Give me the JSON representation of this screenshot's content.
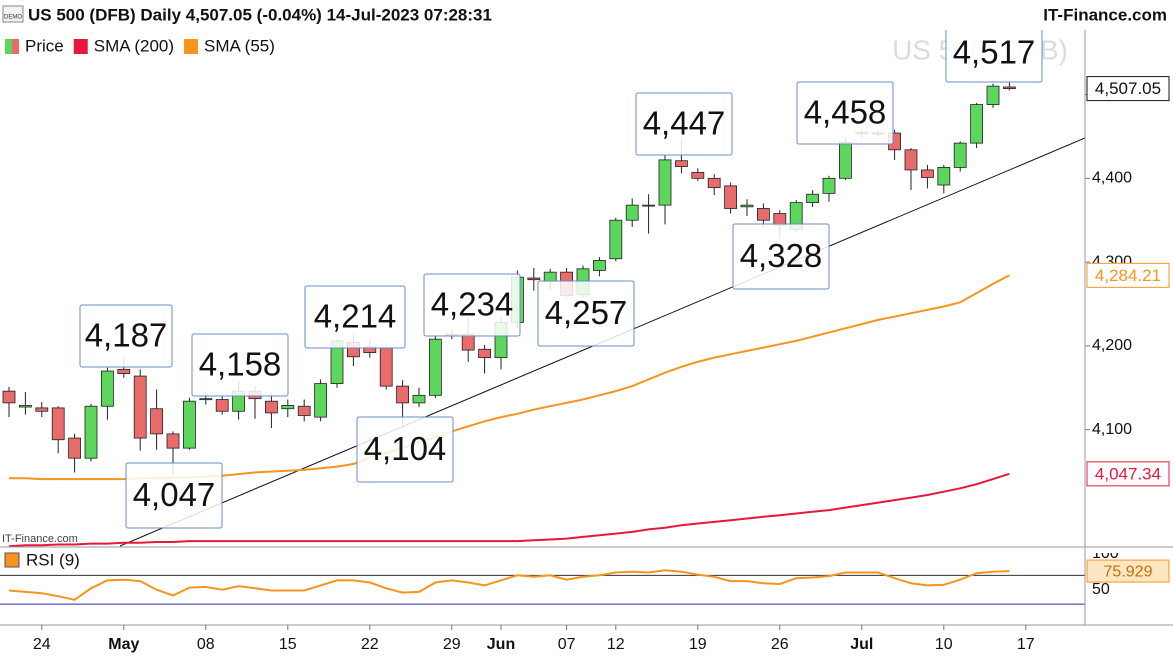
{
  "header": {
    "badge": "DEMO",
    "title": "US 500 (DFB) Daily 4,507.05 (-0.04%) 14-Jul-2023 07:28:31",
    "brand": "IT-Finance.com"
  },
  "chart_data": [
    {
      "type": "candlestick",
      "watermark": "US 500 (DFB)",
      "source": "IT-Finance.com",
      "x": [
        "2023-04-20",
        "2023-04-21",
        "2023-04-24",
        "2023-04-25",
        "2023-04-26",
        "2023-04-27",
        "2023-04-28",
        "2023-05-01",
        "2023-05-02",
        "2023-05-03",
        "2023-05-04",
        "2023-05-05",
        "2023-05-08",
        "2023-05-09",
        "2023-05-10",
        "2023-05-11",
        "2023-05-12",
        "2023-05-15",
        "2023-05-16",
        "2023-05-17",
        "2023-05-18",
        "2023-05-19",
        "2023-05-22",
        "2023-05-23",
        "2023-05-24",
        "2023-05-25",
        "2023-05-26",
        "2023-05-29",
        "2023-05-30",
        "2023-05-31",
        "2023-06-01",
        "2023-06-02",
        "2023-06-05",
        "2023-06-06",
        "2023-06-07",
        "2023-06-08",
        "2023-06-09",
        "2023-06-12",
        "2023-06-13",
        "2023-06-14",
        "2023-06-15",
        "2023-06-16",
        "2023-06-19",
        "2023-06-20",
        "2023-06-21",
        "2023-06-22",
        "2023-06-23",
        "2023-06-26",
        "2023-06-27",
        "2023-06-28",
        "2023-06-29",
        "2023-06-30",
        "2023-07-03",
        "2023-07-04",
        "2023-07-05",
        "2023-07-06",
        "2023-07-07",
        "2023-07-10",
        "2023-07-11",
        "2023-07-12",
        "2023-07-13",
        "2023-07-14"
      ],
      "xticks": [
        {
          "value": "2023-04-24",
          "label": "24"
        },
        {
          "value": "2023-05-01",
          "label": "May"
        },
        {
          "value": "2023-05-08",
          "label": "08"
        },
        {
          "value": "2023-05-15",
          "label": "15"
        },
        {
          "value": "2023-05-22",
          "label": "22"
        },
        {
          "value": "2023-05-29",
          "label": "29"
        },
        {
          "value": "2023-06-01",
          "label": "Jun"
        },
        {
          "value": "2023-06-07",
          "label": "07"
        },
        {
          "value": "2023-06-12",
          "label": "12"
        },
        {
          "value": "2023-06-19",
          "label": "19"
        },
        {
          "value": "2023-06-26",
          "label": "26"
        },
        {
          "value": "2023-07-03",
          "label": "Jul"
        },
        {
          "value": "2023-07-10",
          "label": "10"
        },
        {
          "value": "2023-07-17",
          "label": "17"
        }
      ],
      "ylim": [
        3960,
        4577
      ],
      "yticks": [
        {
          "value": 4100,
          "label": "4,100"
        },
        {
          "value": 4200,
          "label": "4,200"
        },
        {
          "value": 4300,
          "label": "4,300"
        },
        {
          "value": 4400,
          "label": "4,400"
        },
        {
          "value": 4500,
          "label": "4,500"
        }
      ],
      "series": [
        {
          "name": "Price",
          "up_color": "#5cd65c",
          "down_color": "#e86c6c",
          "open": [
            4146,
            4127,
            4126,
            4126,
            4090,
            4066,
            4128,
            4172,
            4164,
            4125,
            4095,
            4078,
            4136,
            4136,
            4122,
            4146,
            4134,
            4125,
            4128,
            4115,
            4155,
            4204,
            4199,
            4198,
            4152,
            4132,
            4141,
            4213,
            4214,
            4196,
            4186,
            4228,
            4281,
            4277,
            4288,
            4261,
            4290,
            4304,
            4350,
            4367,
            4368,
            4421,
            4407,
            4400,
            4391,
            4366,
            4364,
            4358,
            4339,
            4371,
            4382,
            4400,
            4453,
            4454,
            4454,
            4434,
            4410,
            4392,
            4413,
            4442,
            4488,
            4509
          ],
          "high": [
            4151,
            4145,
            4133,
            4128,
            4095,
            4131,
            4174,
            4187,
            4172,
            4148,
            4098,
            4138,
            4145,
            4140,
            4158,
            4152,
            4143,
            4136,
            4136,
            4160,
            4208,
            4214,
            4208,
            4200,
            4159,
            4150,
            4212,
            4219,
            4234,
            4201,
            4234,
            4290,
            4293,
            4292,
            4293,
            4296,
            4306,
            4353,
            4376,
            4381,
            4428,
            4447,
            4412,
            4405,
            4395,
            4375,
            4370,
            4362,
            4374,
            4386,
            4403,
            4449,
            4458,
            4457,
            4458,
            4436,
            4416,
            4416,
            4444,
            4490,
            4513,
            4517
          ],
          "low": [
            4115,
            4118,
            4115,
            4072,
            4049,
            4062,
            4112,
            4162,
            4075,
            4076,
            4047,
            4076,
            4130,
            4118,
            4112,
            4113,
            4102,
            4115,
            4110,
            4110,
            4150,
            4176,
            4186,
            4148,
            4104,
            4127,
            4138,
            4208,
            4181,
            4167,
            4172,
            4222,
            4266,
            4267,
            4257,
            4257,
            4283,
            4301,
            4342,
            4334,
            4345,
            4406,
            4397,
            4380,
            4358,
            4355,
            4342,
            4328,
            4336,
            4366,
            4372,
            4398,
            4448,
            4450,
            4422,
            4386,
            4388,
            4382,
            4408,
            4436,
            4484,
            4505
          ],
          "close": [
            4132,
            4129,
            4122,
            4088,
            4066,
            4128,
            4170,
            4167,
            4090,
            4095,
            4078,
            4134,
            4137,
            4122,
            4146,
            4137,
            4120,
            4129,
            4117,
            4155,
            4206,
            4187,
            4192,
            4152,
            4132,
            4141,
            4208,
            4214,
            4195,
            4186,
            4228,
            4282,
            4279,
            4288,
            4260,
            4292,
            4302,
            4350,
            4368,
            4368,
            4422,
            4414,
            4400,
            4389,
            4364,
            4368,
            4350,
            4344,
            4371,
            4381,
            4400,
            4443,
            4455,
            4453,
            4434,
            4410,
            4401,
            4413,
            4442,
            4488,
            4510,
            4507.05
          ],
          "last_label": "4,507.05"
        },
        {
          "name": "SMA (200)",
          "color": "#e8173c",
          "values": [
            3961,
            3962,
            3962,
            3963,
            3963,
            3964,
            3964,
            3965,
            3965,
            3966,
            3966,
            3967,
            3967,
            3967,
            3967,
            3967,
            3967,
            3967,
            3967,
            3967,
            3967,
            3967,
            3967,
            3967,
            3967,
            3967,
            3967,
            3967,
            3967,
            3967,
            3967,
            3967,
            3968,
            3969,
            3970,
            3972,
            3974,
            3976,
            3978,
            3981,
            3983,
            3986,
            3988,
            3990,
            3992,
            3994,
            3996,
            3998,
            4000,
            4002,
            4004,
            4007,
            4010,
            4013,
            4016,
            4019,
            4022,
            4026,
            4030,
            4035,
            4041,
            4047.34
          ],
          "last_label": "4,047.34"
        },
        {
          "name": "SMA (55)",
          "color": "#f7941d",
          "values": [
            4042,
            4042,
            4041,
            4041,
            4041,
            4041,
            4041,
            4041,
            4042,
            4042,
            4043,
            4043,
            4044,
            4045,
            4047,
            4049,
            4050,
            4051,
            4052,
            4054,
            4056,
            4059,
            4067,
            4072,
            4078,
            4085,
            4091,
            4098,
            4104,
            4110,
            4115,
            4119,
            4124,
            4128,
            4132,
            4136,
            4141,
            4146,
            4152,
            4160,
            4168,
            4175,
            4181,
            4186,
            4190,
            4194,
            4198,
            4202,
            4206,
            4211,
            4216,
            4221,
            4226,
            4231,
            4235,
            4239,
            4243,
            4247,
            4252,
            4263,
            4274,
            4284.21
          ],
          "last_label": "4,284.21"
        }
      ],
      "annotations": [
        {
          "value": 4187,
          "label": "4,187"
        },
        {
          "value": 4047,
          "label": "4,047"
        },
        {
          "value": 4158,
          "label": "4,158"
        },
        {
          "value": 4214,
          "label": "4,214"
        },
        {
          "value": 4104,
          "label": "4,104"
        },
        {
          "value": 4234,
          "label": "4,234"
        },
        {
          "value": 4257,
          "label": "4,257"
        },
        {
          "value": 4447,
          "label": "4,447"
        },
        {
          "value": 4328,
          "label": "4,328"
        },
        {
          "value": 4458,
          "label": "4,458"
        },
        {
          "value": 4517,
          "label": "4,517"
        }
      ]
    },
    {
      "type": "line",
      "title": "RSI (9)",
      "color": "#f7941d",
      "values": [
        49,
        47,
        45,
        41,
        36,
        52,
        63,
        64,
        62,
        50,
        42,
        53,
        54,
        50,
        55,
        52,
        49,
        49,
        49,
        56,
        63,
        63,
        60,
        52,
        46,
        47,
        60,
        63,
        60,
        56,
        63,
        70,
        68,
        70,
        64,
        68,
        70,
        74,
        75,
        74,
        77,
        75,
        71,
        68,
        62,
        62,
        59,
        58,
        66,
        67,
        69,
        74,
        74,
        74,
        66,
        59,
        56,
        57,
        64,
        73,
        75,
        75.929
      ],
      "last_label": "75.929",
      "levels": [
        {
          "value": 70,
          "color": "#333333"
        },
        {
          "value": 30,
          "color": "#2b2bb0"
        }
      ],
      "ylim": [
        1,
        108
      ],
      "yticks": [
        50,
        100
      ]
    }
  ]
}
